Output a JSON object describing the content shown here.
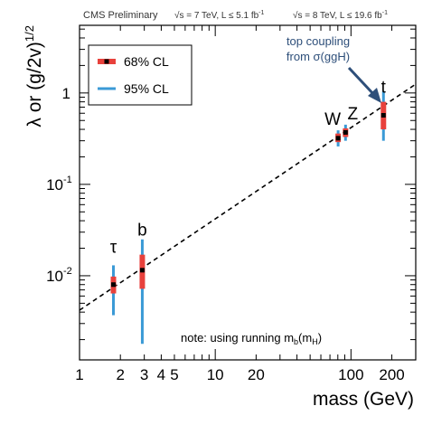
{
  "chart_data": {
    "type": "scatter",
    "header": {
      "left": "CMS Preliminary",
      "energy7": "√s = 7 TeV, L ≤ 5.1 fb",
      "energy8": "√s = 8 TeV, L ≤ 19.6 fb",
      "lumi_sup": "-1"
    },
    "xlabel": "mass (GeV)",
    "ylabel": {
      "pre": "λ or (g/2v)",
      "sup": "1/2"
    },
    "xscale": "log",
    "yscale": "log",
    "xlim": [
      1,
      300
    ],
    "ylim": [
      0.0012,
      5.5
    ],
    "x_ticks": [
      {
        "value": 1,
        "label": "1"
      },
      {
        "value": 2,
        "label": "2"
      },
      {
        "value": 3,
        "label": "3"
      },
      {
        "value": 4,
        "label": "4"
      },
      {
        "value": 5,
        "label": "5"
      },
      {
        "value": 10,
        "label": "10"
      },
      {
        "value": 20,
        "label": "20"
      },
      {
        "value": 100,
        "label": "100"
      },
      {
        "value": 200,
        "label": "200"
      }
    ],
    "y_ticks": [
      {
        "value": 1,
        "base": "1",
        "exp": ""
      },
      {
        "value": 0.1,
        "base": "10",
        "exp": "-1"
      },
      {
        "value": 0.01,
        "base": "10",
        "exp": "-2"
      }
    ],
    "legend": {
      "placement": "top-left",
      "entries": [
        {
          "label": "68% CL",
          "color": "#e8413c"
        },
        {
          "label": "95% CL",
          "color": "#3b9ad6"
        }
      ]
    },
    "points": [
      {
        "label": "τ",
        "mass": 1.777,
        "value": 0.008,
        "cl68": [
          0.0064,
          0.0098
        ],
        "cl95": [
          0.0037,
          0.013
        ]
      },
      {
        "label": "b",
        "mass": 2.9,
        "value": 0.0115,
        "cl68": [
          0.0072,
          0.017
        ],
        "cl95": [
          0.0018,
          0.025
        ]
      },
      {
        "label": "W",
        "mass": 80.4,
        "value": 0.32,
        "cl68": [
          0.29,
          0.36
        ],
        "cl95": [
          0.26,
          0.39
        ]
      },
      {
        "label": "Z",
        "mass": 91.2,
        "value": 0.37,
        "cl68": [
          0.33,
          0.41
        ],
        "cl95": [
          0.3,
          0.45
        ]
      },
      {
        "label": "t",
        "mass": 173.5,
        "value": 0.57,
        "cl68": [
          0.4,
          0.8
        ],
        "cl95": [
          0.3,
          1.05
        ]
      }
    ],
    "sm_line": {
      "style": "dashed",
      "color": "#000000",
      "x": [
        1,
        300
      ],
      "y": [
        0.0042,
        1.25
      ]
    },
    "annotations": {
      "top_coupling": [
        "top coupling",
        "from σ(ggH)"
      ],
      "note": {
        "pre": "note: using running m",
        "sub1": "b",
        "mid": "(m",
        "sub2": "H",
        "post": ")"
      }
    },
    "colors": {
      "cl68": "#e8413c",
      "cl95": "#3b9ad6",
      "annotation": "#2e4f7a",
      "marker": "#000000"
    }
  }
}
